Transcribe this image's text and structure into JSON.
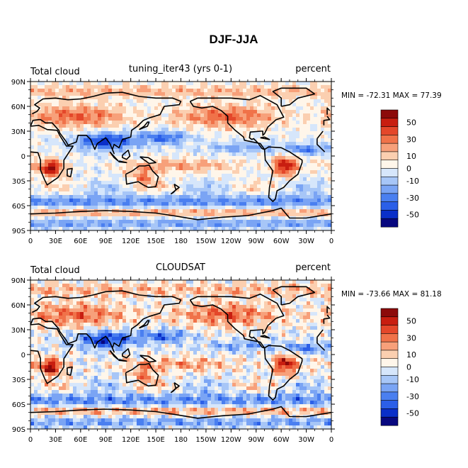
{
  "chart_data": {
    "type": "heatmap",
    "title": "DJF-JJA",
    "colors": [
      "#08087f",
      "#0a2fc9",
      "#2b5fe8",
      "#4a7ff0",
      "#7aa4f4",
      "#a7c6f7",
      "#d6e6fb",
      "#fff6ea",
      "#fbcfb0",
      "#f7a07a",
      "#f07249",
      "#e4472a",
      "#c81e10",
      "#8c0a0a"
    ],
    "colorbar_labels": [
      "50",
      "30",
      "10",
      "0",
      "-10",
      "-30",
      "-50"
    ],
    "x_ticks": [
      "0",
      "30E",
      "60E",
      "90E",
      "120E",
      "150E",
      "180",
      "150W",
      "120W",
      "90W",
      "60W",
      "30W",
      "0"
    ],
    "y_ticks": [
      "90N",
      "60N",
      "30N",
      "0",
      "30S",
      "60S",
      "90S"
    ],
    "panels": [
      {
        "left_label": "Total cloud",
        "center_label": "tuning_iter43 (yrs 0-1)",
        "right_label": "percent",
        "min_max": "MIN = -72.31  MAX =  77.39",
        "min": -72.31,
        "max": 77.39
      },
      {
        "left_label": "Total cloud",
        "center_label": "CLOUDSAT",
        "right_label": "percent",
        "min_max": "MIN = -73.66  MAX =  81.18",
        "min": -73.66,
        "max": 81.18
      }
    ]
  }
}
